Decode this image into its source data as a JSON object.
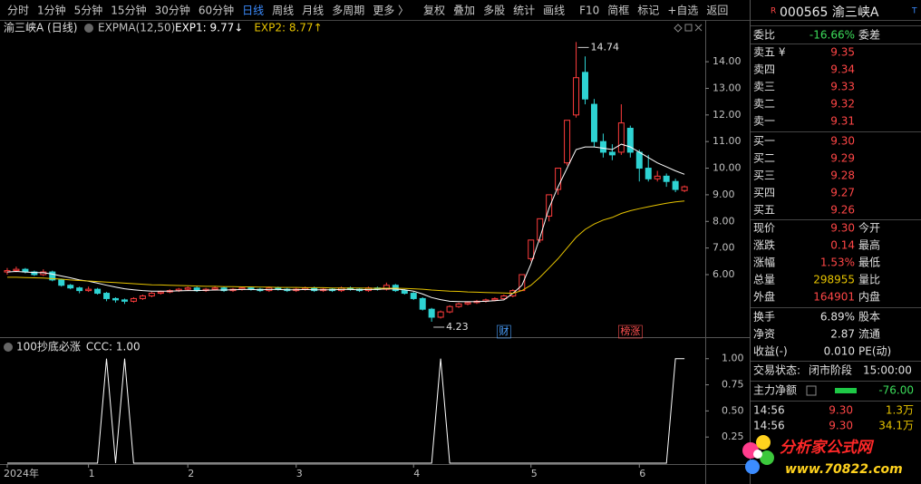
{
  "toolbar": {
    "items": [
      "分时",
      "1分钟",
      "5分钟",
      "15分钟",
      "30分钟",
      "60分钟",
      "日线",
      "周线",
      "月线",
      "多周期",
      "更多 〉",
      "复权",
      "叠加",
      "多股",
      "统计",
      "画线",
      "F10",
      "简框",
      "标记",
      "+自选",
      "返回"
    ],
    "active": "日线"
  },
  "chart_data": [
    {
      "type": "candlestick",
      "title": "渝三峡A (日线)",
      "indicator": "EXPMA(12,50)",
      "up_color": "#ff3c3c",
      "down_color": "#2ed3d3",
      "ohlc": [
        [
          6.1,
          6.25,
          6.0,
          6.15
        ],
        [
          6.15,
          6.3,
          6.1,
          6.2
        ],
        [
          6.2,
          6.25,
          6.05,
          6.1
        ],
        [
          6.1,
          6.15,
          5.95,
          6.0
        ],
        [
          6.0,
          6.2,
          5.95,
          6.1
        ],
        [
          6.1,
          6.15,
          5.75,
          5.8
        ],
        [
          5.8,
          5.85,
          5.55,
          5.6
        ],
        [
          5.6,
          5.65,
          5.45,
          5.5
        ],
        [
          5.5,
          5.55,
          5.3,
          5.4
        ],
        [
          5.4,
          5.55,
          5.35,
          5.45
        ],
        [
          5.45,
          5.5,
          5.25,
          5.3
        ],
        [
          5.3,
          5.35,
          5.0,
          5.1
        ],
        [
          5.1,
          5.15,
          4.95,
          5.05
        ],
        [
          5.05,
          5.1,
          4.9,
          5.0
        ],
        [
          5.0,
          5.15,
          4.95,
          5.1
        ],
        [
          5.1,
          5.25,
          5.05,
          5.2
        ],
        [
          5.2,
          5.35,
          5.15,
          5.3
        ],
        [
          5.3,
          5.4,
          5.25,
          5.35
        ],
        [
          5.35,
          5.45,
          5.3,
          5.4
        ],
        [
          5.4,
          5.5,
          5.35,
          5.45
        ],
        [
          5.45,
          5.55,
          5.4,
          5.5
        ],
        [
          5.5,
          5.55,
          5.35,
          5.4
        ],
        [
          5.4,
          5.5,
          5.35,
          5.45
        ],
        [
          5.45,
          5.55,
          5.4,
          5.5
        ],
        [
          5.5,
          5.55,
          5.35,
          5.4
        ],
        [
          5.4,
          5.5,
          5.35,
          5.45
        ],
        [
          5.45,
          5.55,
          5.4,
          5.5
        ],
        [
          5.5,
          5.55,
          5.4,
          5.45
        ],
        [
          5.45,
          5.5,
          5.35,
          5.4
        ],
        [
          5.4,
          5.55,
          5.35,
          5.5
        ],
        [
          5.5,
          5.55,
          5.4,
          5.45
        ],
        [
          5.45,
          5.5,
          5.35,
          5.4
        ],
        [
          5.4,
          5.5,
          5.35,
          5.45
        ],
        [
          5.45,
          5.55,
          5.4,
          5.5
        ],
        [
          5.5,
          5.55,
          5.35,
          5.4
        ],
        [
          5.4,
          5.5,
          5.35,
          5.45
        ],
        [
          5.45,
          5.5,
          5.35,
          5.4
        ],
        [
          5.4,
          5.55,
          5.35,
          5.5
        ],
        [
          5.5,
          5.55,
          5.4,
          5.45
        ],
        [
          5.45,
          5.5,
          5.35,
          5.4
        ],
        [
          5.4,
          5.55,
          5.35,
          5.5
        ],
        [
          5.5,
          5.55,
          5.4,
          5.45
        ],
        [
          5.45,
          5.7,
          5.4,
          5.6
        ],
        [
          5.6,
          5.65,
          5.35,
          5.4
        ],
        [
          5.4,
          5.45,
          5.25,
          5.3
        ],
        [
          5.3,
          5.35,
          5.05,
          5.1
        ],
        [
          5.1,
          5.15,
          4.65,
          4.7
        ],
        [
          4.7,
          4.75,
          4.23,
          4.4
        ],
        [
          4.4,
          4.65,
          4.35,
          4.6
        ],
        [
          4.6,
          4.85,
          4.55,
          4.8
        ],
        [
          4.8,
          4.95,
          4.75,
          4.9
        ],
        [
          4.9,
          5.0,
          4.85,
          4.95
        ],
        [
          4.95,
          5.05,
          4.9,
          5.0
        ],
        [
          5.0,
          5.1,
          4.95,
          5.05
        ],
        [
          5.05,
          5.15,
          5.0,
          5.1
        ],
        [
          5.1,
          5.25,
          5.05,
          5.2
        ],
        [
          5.2,
          5.45,
          5.15,
          5.4
        ],
        [
          5.4,
          6.0,
          5.4,
          6.0
        ],
        [
          6.6,
          7.3,
          6.5,
          7.3
        ],
        [
          7.3,
          8.1,
          7.2,
          8.1
        ],
        [
          8.2,
          9.0,
          8.0,
          9.0
        ],
        [
          9.2,
          10.0,
          9.0,
          10.0
        ],
        [
          10.2,
          11.8,
          10.1,
          11.8
        ],
        [
          12.0,
          14.74,
          11.9,
          13.4
        ],
        [
          13.6,
          14.2,
          12.4,
          12.6
        ],
        [
          12.4,
          12.6,
          10.8,
          11.0
        ],
        [
          11.0,
          11.3,
          10.4,
          10.6
        ],
        [
          10.6,
          10.9,
          10.3,
          10.5
        ],
        [
          10.6,
          12.4,
          10.5,
          11.7
        ],
        [
          11.5,
          11.6,
          10.4,
          10.6
        ],
        [
          10.6,
          10.7,
          9.5,
          10.0
        ],
        [
          10.0,
          10.5,
          9.5,
          9.6
        ],
        [
          9.6,
          9.9,
          9.5,
          9.7
        ],
        [
          9.7,
          9.8,
          9.3,
          9.5
        ],
        [
          9.5,
          9.6,
          9.1,
          9.2
        ],
        [
          9.16,
          9.35,
          9.1,
          9.3
        ]
      ],
      "series": [
        {
          "name": "EXP1",
          "legend": "EXP1: 9.77↓",
          "color": "#ffffff",
          "values": [
            6.1,
            6.12,
            6.1,
            6.08,
            6.07,
            6.02,
            5.95,
            5.88,
            5.8,
            5.75,
            5.68,
            5.6,
            5.53,
            5.47,
            5.43,
            5.4,
            5.38,
            5.38,
            5.38,
            5.39,
            5.4,
            5.4,
            5.41,
            5.42,
            5.42,
            5.43,
            5.44,
            5.44,
            5.43,
            5.44,
            5.44,
            5.43,
            5.43,
            5.44,
            5.43,
            5.43,
            5.43,
            5.44,
            5.44,
            5.43,
            5.44,
            5.44,
            5.47,
            5.46,
            5.43,
            5.38,
            5.27,
            5.14,
            5.06,
            5.0,
            4.99,
            4.98,
            4.99,
            5.0,
            5.02,
            5.05,
            5.3,
            5.6,
            6.4,
            7.4,
            8.5,
            9.3,
            10.0,
            10.7,
            10.8,
            10.8,
            10.75,
            10.7,
            10.9,
            10.8,
            10.6,
            10.4,
            10.2,
            10.05,
            9.9,
            9.77
          ]
        },
        {
          "name": "EXP2",
          "legend": "EXP2: 8.77↑",
          "color": "#e6c300",
          "values": [
            5.9,
            5.9,
            5.89,
            5.88,
            5.87,
            5.85,
            5.83,
            5.8,
            5.78,
            5.76,
            5.74,
            5.72,
            5.7,
            5.68,
            5.66,
            5.64,
            5.62,
            5.61,
            5.6,
            5.59,
            5.58,
            5.57,
            5.56,
            5.56,
            5.55,
            5.55,
            5.54,
            5.54,
            5.53,
            5.53,
            5.52,
            5.52,
            5.52,
            5.51,
            5.51,
            5.51,
            5.5,
            5.5,
            5.5,
            5.5,
            5.49,
            5.49,
            5.49,
            5.49,
            5.48,
            5.47,
            5.45,
            5.42,
            5.4,
            5.38,
            5.37,
            5.35,
            5.34,
            5.33,
            5.32,
            5.31,
            5.3,
            5.4,
            5.6,
            5.9,
            6.25,
            6.6,
            7.0,
            7.4,
            7.7,
            7.9,
            8.05,
            8.15,
            8.3,
            8.4,
            8.48,
            8.55,
            8.62,
            8.68,
            8.73,
            8.77
          ]
        }
      ],
      "xlim": [
        -0.8,
        77.3
      ],
      "ylim": [
        3.65,
        15.57
      ],
      "yticks": [
        {
          "value": 6,
          "label": "6.00"
        },
        {
          "value": 7,
          "label": "7.00"
        },
        {
          "value": 8,
          "label": "8.00"
        },
        {
          "value": 9,
          "label": "9.00"
        },
        {
          "value": 10,
          "label": "10.00"
        },
        {
          "value": 11,
          "label": "11.00"
        },
        {
          "value": 12,
          "label": "12.00"
        },
        {
          "value": 13,
          "label": "13.00"
        },
        {
          "value": 14,
          "label": "14.00"
        }
      ],
      "annotations": [
        {
          "text": "14.74",
          "x": 63,
          "y": 14.74
        },
        {
          "text": "4.23",
          "x": 47,
          "y": 4.23
        },
        {
          "text": "财",
          "x": 55,
          "color": "#4aa0ff"
        },
        {
          "text": "榜涨",
          "x": 69,
          "color": "#ff5050"
        }
      ]
    },
    {
      "type": "line",
      "title": "100抄底必涨",
      "legend": "CCC: 1.00",
      "series": [
        {
          "name": "CCC",
          "color": "#ffffff",
          "values": [
            0,
            0,
            0,
            0,
            0,
            0,
            0,
            0,
            0,
            0,
            0,
            1,
            0,
            1,
            0,
            0,
            0,
            0,
            0,
            0,
            0,
            0,
            0,
            0,
            0,
            0,
            0,
            0,
            0,
            0,
            0,
            0,
            0,
            0,
            0,
            0,
            0,
            0,
            0,
            0,
            0,
            0,
            0,
            0,
            0,
            0,
            0,
            0,
            1,
            0,
            0,
            0,
            0,
            0,
            0,
            0,
            0,
            0,
            0,
            0,
            0,
            0,
            0,
            0,
            0,
            0,
            0,
            0,
            0,
            0,
            0,
            0,
            0,
            0,
            1,
            1
          ]
        }
      ],
      "xlim": [
        -0.8,
        77.3
      ],
      "ylim": [
        0,
        1.18
      ],
      "yticks": [
        {
          "value": 0.25,
          "label": "0.25"
        },
        {
          "value": 0.5,
          "label": "0.50"
        },
        {
          "value": 0.75,
          "label": "0.75"
        },
        {
          "value": 1,
          "label": "1.00"
        }
      ],
      "xticks": [
        {
          "value": 0,
          "label": "2024年"
        },
        {
          "value": 9,
          "label": "1"
        },
        {
          "value": 20,
          "label": "2"
        },
        {
          "value": 32,
          "label": "3"
        },
        {
          "value": 45,
          "label": "4"
        },
        {
          "value": 58,
          "label": "5"
        },
        {
          "value": 70,
          "label": "6"
        }
      ]
    }
  ],
  "quote": {
    "flag_r": "R",
    "title": "000565 渝三峡A",
    "flag_t": "T",
    "weibi": {
      "label": "委比",
      "value": "-16.66%",
      "label2": "委差",
      "color": "#3cdc5a"
    },
    "asks": [
      {
        "label": "卖五 ¥",
        "price": "9.35"
      },
      {
        "label": "卖四",
        "price": "9.34"
      },
      {
        "label": "卖三",
        "price": "9.33"
      },
      {
        "label": "卖二",
        "price": "9.32"
      },
      {
        "label": "卖一",
        "price": "9.31"
      }
    ],
    "bids": [
      {
        "label": "买一",
        "price": "9.30"
      },
      {
        "label": "买二",
        "price": "9.29"
      },
      {
        "label": "买三",
        "price": "9.28"
      },
      {
        "label": "买四",
        "price": "9.27"
      },
      {
        "label": "买五",
        "price": "9.26"
      }
    ],
    "stats": [
      {
        "label": "现价",
        "value": "9.30",
        "label2": "今开",
        "color": "#ff4646"
      },
      {
        "label": "涨跌",
        "value": "0.14",
        "label2": "最高",
        "color": "#ff4646"
      },
      {
        "label": "涨幅",
        "value": "1.53%",
        "label2": "最低",
        "color": "#ff4646"
      },
      {
        "label": "总量",
        "value": "298955",
        "label2": "量比",
        "color": "#e6c300"
      },
      {
        "label": "外盘",
        "value": "164901",
        "label2": "内盘",
        "color": "#ff4646"
      },
      {
        "label": "换手",
        "value": "6.89%",
        "label2": "股本",
        "color": "#e0e0e0"
      },
      {
        "label": "净资",
        "value": "2.87",
        "label2": "流通",
        "color": "#e0e0e0"
      },
      {
        "label": "收益(-)",
        "value": "0.010",
        "label2": "PE(动)",
        "color": "#e0e0e0"
      }
    ],
    "status": {
      "label": "交易状态:",
      "value": "闭市阶段",
      "time": "15:00:00"
    },
    "main_net": {
      "label": "主力净额",
      "value": "-76.00"
    },
    "ticks": [
      {
        "time": "14:56",
        "price": "9.30",
        "volume": "1.3万"
      },
      {
        "time": "14:56",
        "price": "9.30",
        "volume": "34.1万"
      }
    ]
  },
  "logo": {
    "title": "分析家公式网",
    "url": "www.70822.com"
  }
}
